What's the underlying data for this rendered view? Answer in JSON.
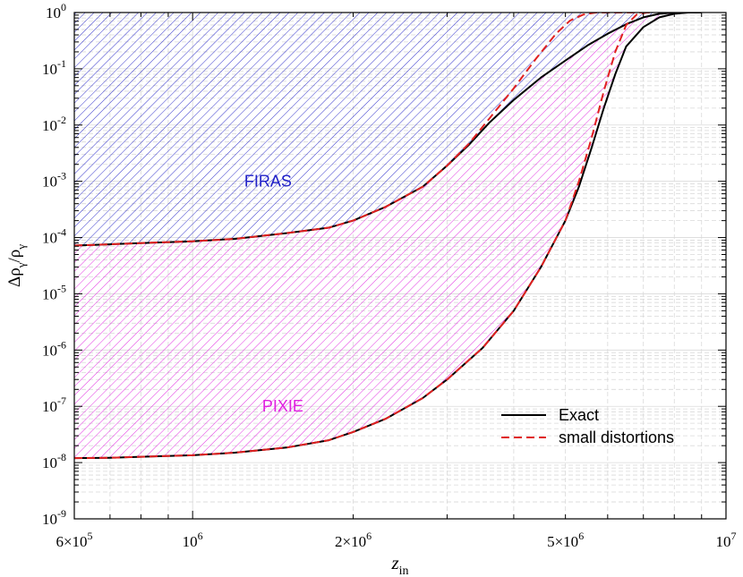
{
  "chart_data": {
    "type": "line",
    "title": "",
    "xlabel": {
      "main": "z",
      "sub": "in"
    },
    "ylabel": {
      "delta": "Δρ",
      "sub1": "γ",
      "slash": "/ρ",
      "sub2": "γ"
    },
    "x_scale": "log",
    "y_scale": "log",
    "xlim": [
      600000,
      10000000
    ],
    "ylim": [
      1e-09,
      1
    ],
    "grid": true,
    "legend_position": "bottom-right",
    "x_ticks": [
      {
        "value": 600000,
        "mant": "6×10",
        "exp": "5"
      },
      {
        "value": 1000000,
        "mant": "10",
        "exp": "6"
      },
      {
        "value": 2000000,
        "mant": "2×10",
        "exp": "6"
      },
      {
        "value": 5000000,
        "mant": "5×10",
        "exp": "6"
      },
      {
        "value": 10000000,
        "mant": "10",
        "exp": "7"
      }
    ],
    "y_ticks": [
      {
        "value": 1e-09,
        "mant": "10",
        "exp": "-9"
      },
      {
        "value": 1e-08,
        "mant": "10",
        "exp": "-8"
      },
      {
        "value": 1e-07,
        "mant": "10",
        "exp": "-7"
      },
      {
        "value": 1e-06,
        "mant": "10",
        "exp": "-6"
      },
      {
        "value": 1e-05,
        "mant": "10",
        "exp": "-5"
      },
      {
        "value": 0.0001,
        "mant": "10",
        "exp": "-4"
      },
      {
        "value": 0.001,
        "mant": "10",
        "exp": "-3"
      },
      {
        "value": 0.01,
        "mant": "10",
        "exp": "-2"
      },
      {
        "value": 0.1,
        "mant": "10",
        "exp": "-1"
      },
      {
        "value": 1,
        "mant": "10",
        "exp": "0"
      }
    ],
    "regions": [
      {
        "label": "FIRAS",
        "color": "#2020c8",
        "label_at": [
          1250000,
          0.001
        ]
      },
      {
        "label": "PIXIE",
        "color": "#e020e0",
        "label_at": [
          1350000,
          1e-07
        ]
      }
    ],
    "series": [
      {
        "name": "Exact",
        "style": "solid",
        "color": "#000000",
        "curves": {
          "firas": [
            [
              600000,
              7.2e-05
            ],
            [
              700000,
              7.6e-05
            ],
            [
              800000,
              8e-05
            ],
            [
              1000000,
              8.6e-05
            ],
            [
              1200000,
              9.5e-05
            ],
            [
              1500000,
              0.00012
            ],
            [
              1800000,
              0.00015
            ],
            [
              2000000,
              0.0002
            ],
            [
              2300000,
              0.00035
            ],
            [
              2700000,
              0.0008
            ],
            [
              3000000,
              0.0019
            ],
            [
              3300000,
              0.0045
            ],
            [
              3600000,
              0.011
            ],
            [
              4000000,
              0.028
            ],
            [
              4500000,
              0.07
            ],
            [
              5000000,
              0.14
            ],
            [
              5500000,
              0.26
            ],
            [
              6000000,
              0.42
            ],
            [
              6500000,
              0.62
            ],
            [
              7000000,
              0.82
            ],
            [
              7500000,
              0.95
            ],
            [
              8000000,
              1.0
            ],
            [
              9000000,
              1.0
            ]
          ],
          "pixie": [
            [
              600000,
              1.2e-08
            ],
            [
              700000,
              1.22e-08
            ],
            [
              800000,
              1.27e-08
            ],
            [
              1000000,
              1.35e-08
            ],
            [
              1200000,
              1.5e-08
            ],
            [
              1500000,
              1.85e-08
            ],
            [
              1800000,
              2.5e-08
            ],
            [
              2000000,
              3.5e-08
            ],
            [
              2300000,
              6e-08
            ],
            [
              2700000,
              1.4e-07
            ],
            [
              3000000,
              3e-07
            ],
            [
              3500000,
              1.1e-06
            ],
            [
              4000000,
              5e-06
            ],
            [
              4500000,
              3e-05
            ],
            [
              5000000,
              0.0002
            ],
            [
              5300000,
              0.0008
            ],
            [
              5600000,
              0.004
            ],
            [
              5900000,
              0.02
            ],
            [
              6200000,
              0.08
            ],
            [
              6500000,
              0.25
            ],
            [
              7000000,
              0.55
            ],
            [
              7500000,
              0.82
            ],
            [
              8000000,
              0.95
            ],
            [
              8500000,
              1.0
            ],
            [
              9000000,
              1.0
            ]
          ]
        }
      },
      {
        "name": "small distortions",
        "style": "dashed",
        "color": "#e02020",
        "curves": {
          "firas": [
            [
              600000,
              7.2e-05
            ],
            [
              700000,
              7.6e-05
            ],
            [
              800000,
              8e-05
            ],
            [
              1000000,
              8.6e-05
            ],
            [
              1200000,
              9.5e-05
            ],
            [
              1500000,
              0.00012
            ],
            [
              1800000,
              0.00015
            ],
            [
              2000000,
              0.0002
            ],
            [
              2300000,
              0.00035
            ],
            [
              2700000,
              0.0008
            ],
            [
              3000000,
              0.0019
            ],
            [
              3300000,
              0.0047
            ],
            [
              3600000,
              0.013
            ],
            [
              4000000,
              0.045
            ],
            [
              4400000,
              0.15
            ],
            [
              4800000,
              0.42
            ],
            [
              5100000,
              0.72
            ],
            [
              5400000,
              0.92
            ],
            [
              5700000,
              1.0
            ],
            [
              7000000,
              1.0
            ]
          ],
          "pixie": [
            [
              600000,
              1.2e-08
            ],
            [
              700000,
              1.22e-08
            ],
            [
              800000,
              1.27e-08
            ],
            [
              1000000,
              1.35e-08
            ],
            [
              1200000,
              1.5e-08
            ],
            [
              1500000,
              1.85e-08
            ],
            [
              1800000,
              2.5e-08
            ],
            [
              2000000,
              3.5e-08
            ],
            [
              2300000,
              6e-08
            ],
            [
              2700000,
              1.4e-07
            ],
            [
              3000000,
              3e-07
            ],
            [
              3500000,
              1.1e-06
            ],
            [
              4000000,
              5e-06
            ],
            [
              4500000,
              3e-05
            ],
            [
              5000000,
              0.0002
            ],
            [
              5300000,
              0.001
            ],
            [
              5600000,
              0.006
            ],
            [
              5900000,
              0.04
            ],
            [
              6200000,
              0.2
            ],
            [
              6500000,
              0.6
            ],
            [
              6800000,
              0.92
            ],
            [
              7100000,
              1.0
            ],
            [
              7200000,
              1.0
            ]
          ]
        }
      }
    ]
  }
}
